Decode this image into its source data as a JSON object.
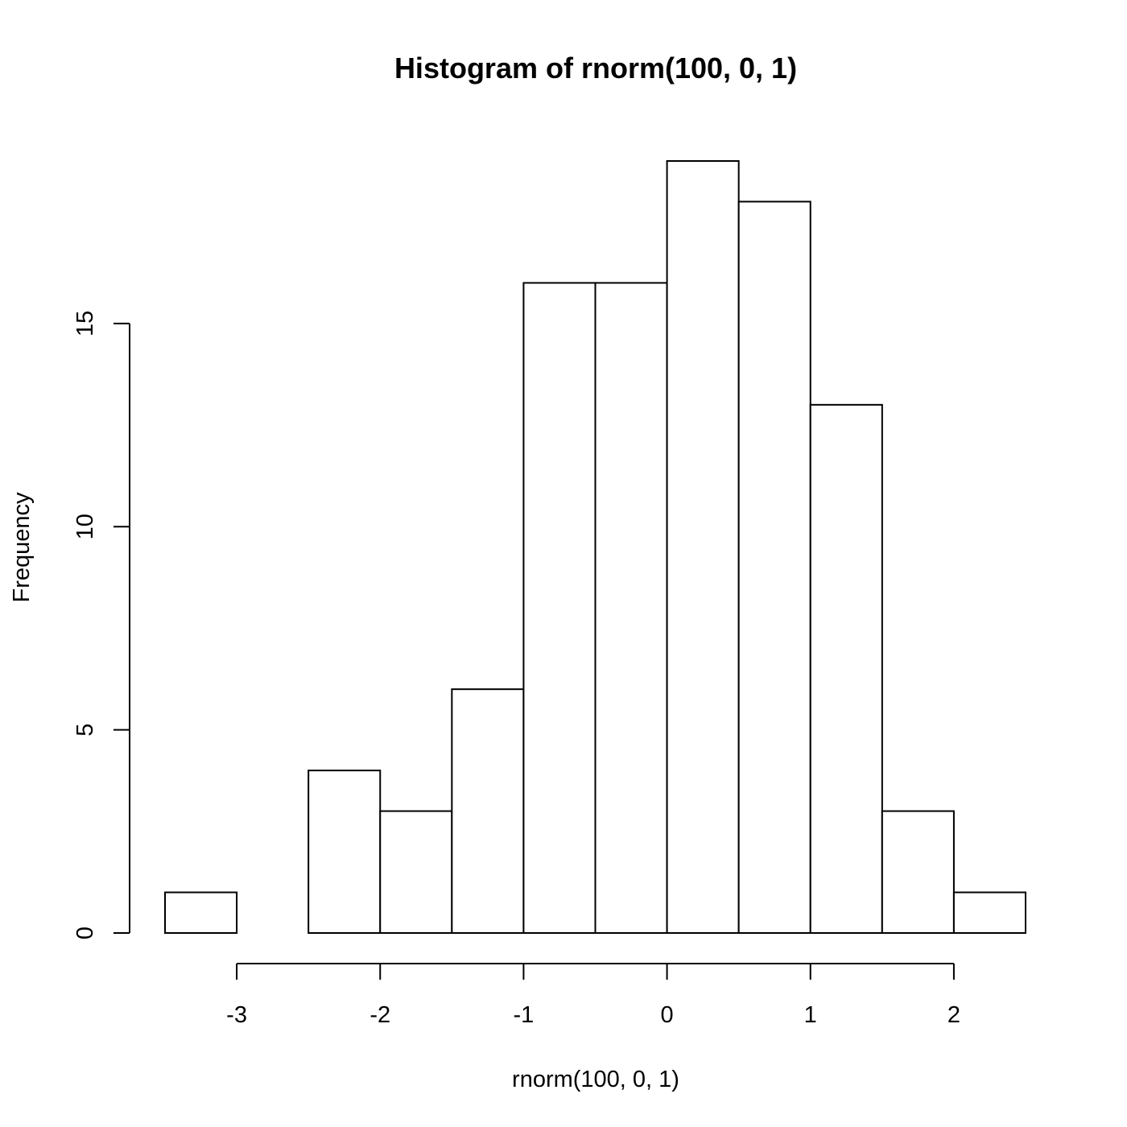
{
  "chart_data": {
    "type": "bar",
    "subtype": "histogram",
    "title": "Histogram of rnorm(100, 0, 1)",
    "xlabel": "rnorm(100, 0, 1)",
    "ylabel": "Frequency",
    "bin_edges": [
      -3.5,
      -3.0,
      -2.5,
      -2.0,
      -1.5,
      -1.0,
      -0.5,
      0.0,
      0.5,
      1.0,
      1.5,
      2.0,
      2.5
    ],
    "counts": [
      1,
      0,
      4,
      3,
      6,
      16,
      16,
      19,
      18,
      13,
      3,
      1
    ],
    "xticks": [
      -3,
      -2,
      -1,
      0,
      1,
      2
    ],
    "xtick_labels": [
      "-3",
      "-2",
      "-1",
      "0",
      "1",
      "2"
    ],
    "yticks": [
      0,
      5,
      10,
      15
    ],
    "ytick_labels": [
      "0",
      "5",
      "10",
      "15"
    ],
    "xlim": [
      -3.5,
      2.5
    ],
    "ylim": [
      0,
      19
    ],
    "grid": false,
    "colors": {
      "bar_fill": "#ffffff",
      "bar_stroke": "#000000"
    }
  }
}
